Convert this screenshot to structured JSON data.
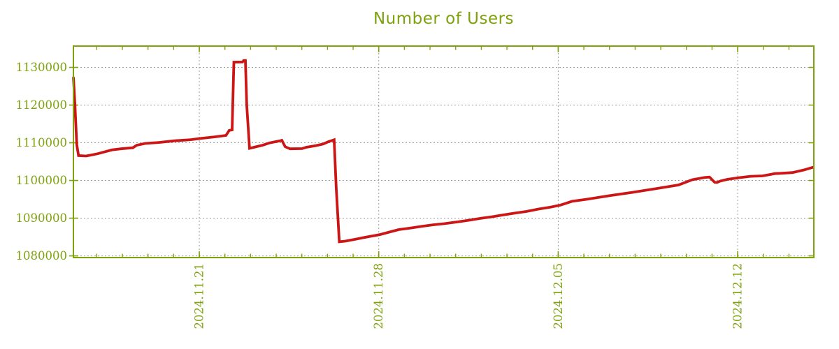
{
  "colors": {
    "axis_olive": "#7ea10e",
    "line_red": "#cc1515",
    "grid_gray": "#9b9b9b",
    "background": "#ffffff"
  },
  "chart_data": {
    "type": "line",
    "title": "Number of Users",
    "legend": "none",
    "grid": true,
    "x_unit": "days (left edge ≈ 2024.11.16, right edge ≈ 2024.12.15)",
    "xlim": [
      0,
      28.88
    ],
    "ylim": [
      1079550,
      1135650
    ],
    "y_axis": {
      "ticks": [
        1080000,
        1090000,
        1100000,
        1110000,
        1120000,
        1130000
      ],
      "labels": [
        "1080000",
        "1090000",
        "1100000",
        "1110000",
        "1120000",
        "1130000"
      ]
    },
    "x_axis": {
      "major_ticks": [
        {
          "day": 4.91,
          "label": "2024.11.21"
        },
        {
          "day": 11.91,
          "label": "2024.11.28"
        },
        {
          "day": 18.91,
          "label": "2024.12.05"
        },
        {
          "day": 25.91,
          "label": "2024.12.12"
        }
      ],
      "minor_tick_days": [
        0.91,
        1.91,
        2.91,
        3.91,
        4.91,
        5.91,
        6.91,
        7.91,
        8.91,
        9.91,
        10.91,
        11.91,
        12.91,
        13.91,
        14.91,
        15.91,
        16.91,
        17.91,
        18.91,
        19.91,
        20.91,
        21.91,
        22.91,
        23.91,
        24.91,
        25.91,
        26.91,
        27.91
      ]
    },
    "series": [
      {
        "name": "Number of Users",
        "color": "#cc1515",
        "points": [
          [
            0,
            1127450
          ],
          [
            0.06,
            1120000
          ],
          [
            0.13,
            1109500
          ],
          [
            0.2,
            1106600
          ],
          [
            0.5,
            1106480
          ],
          [
            0.95,
            1107100
          ],
          [
            1.5,
            1108100
          ],
          [
            1.85,
            1108400
          ],
          [
            2.32,
            1108700
          ],
          [
            2.47,
            1109350
          ],
          [
            2.8,
            1109830
          ],
          [
            3.33,
            1110080
          ],
          [
            3.95,
            1110520
          ],
          [
            4.58,
            1110830
          ],
          [
            4.94,
            1111130
          ],
          [
            5.51,
            1111560
          ],
          [
            5.95,
            1111950
          ],
          [
            6.08,
            1113300
          ],
          [
            6.19,
            1113420
          ],
          [
            6.26,
            1131400
          ],
          [
            6.6,
            1131420
          ],
          [
            6.64,
            1131820
          ],
          [
            6.71,
            1131820
          ],
          [
            6.76,
            1120000
          ],
          [
            6.87,
            1108530
          ],
          [
            7.1,
            1108900
          ],
          [
            7.4,
            1109400
          ],
          [
            7.64,
            1109950
          ],
          [
            8.05,
            1110500
          ],
          [
            8.13,
            1110650
          ],
          [
            8.26,
            1108950
          ],
          [
            8.45,
            1108400
          ],
          [
            8.92,
            1108450
          ],
          [
            9.08,
            1108800
          ],
          [
            9.46,
            1109250
          ],
          [
            9.74,
            1109680
          ],
          [
            9.95,
            1110300
          ],
          [
            10.09,
            1110600
          ],
          [
            10.17,
            1110790
          ],
          [
            10.25,
            1098000
          ],
          [
            10.37,
            1083730
          ],
          [
            10.6,
            1083900
          ],
          [
            11,
            1084400
          ],
          [
            11.32,
            1084840
          ],
          [
            11.95,
            1085640
          ],
          [
            12.68,
            1086950
          ],
          [
            13.14,
            1087390
          ],
          [
            13.59,
            1087820
          ],
          [
            14.05,
            1088250
          ],
          [
            14.5,
            1088570
          ],
          [
            14.96,
            1089000
          ],
          [
            15.41,
            1089440
          ],
          [
            15.87,
            1089930
          ],
          [
            16.32,
            1090370
          ],
          [
            16.77,
            1090860
          ],
          [
            17.23,
            1091360
          ],
          [
            17.68,
            1091790
          ],
          [
            18.14,
            1092420
          ],
          [
            18.59,
            1092900
          ],
          [
            19,
            1093470
          ],
          [
            19.45,
            1094470
          ],
          [
            20,
            1095000
          ],
          [
            20.9,
            1095950
          ],
          [
            21.8,
            1096850
          ],
          [
            22.7,
            1097800
          ],
          [
            23.6,
            1098800
          ],
          [
            24.14,
            1100200
          ],
          [
            24.62,
            1100800
          ],
          [
            24.81,
            1100900
          ],
          [
            25.01,
            1099520
          ],
          [
            25.1,
            1099480
          ],
          [
            25.23,
            1099850
          ],
          [
            25.5,
            1100280
          ],
          [
            25.95,
            1100730
          ],
          [
            26.41,
            1101100
          ],
          [
            26.87,
            1101210
          ],
          [
            27.14,
            1101520
          ],
          [
            27.36,
            1101830
          ],
          [
            27.6,
            1101900
          ],
          [
            28.05,
            1102100
          ],
          [
            28.5,
            1102800
          ],
          [
            28.88,
            1103560
          ]
        ]
      }
    ]
  }
}
